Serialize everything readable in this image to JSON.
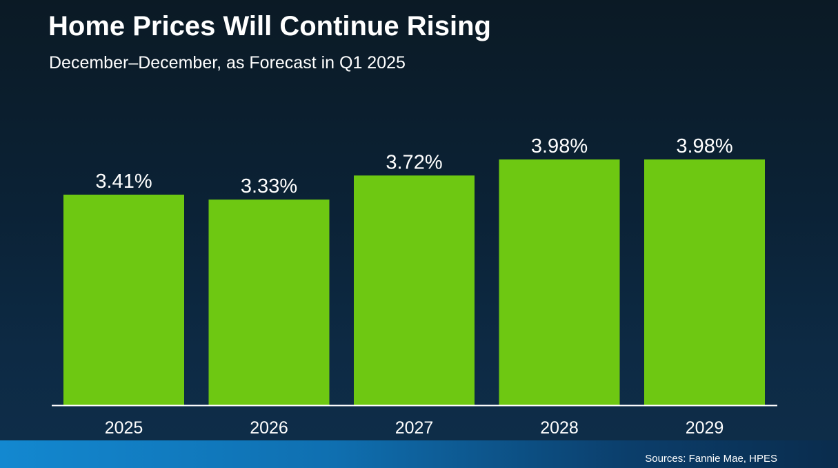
{
  "page": {
    "title": "Home Prices Will Continue Rising",
    "subtitle": "December–December, as Forecast in Q1 2025",
    "source": "Sources: Fannie Mae, HPES"
  },
  "colors": {
    "bar": "#6ec812",
    "axis": "#ffffff",
    "label": "#ffffff"
  },
  "chart_data": {
    "type": "bar",
    "categories": [
      "2025",
      "2026",
      "2027",
      "2028",
      "2029"
    ],
    "values": [
      3.41,
      3.33,
      3.72,
      3.98,
      3.98
    ],
    "value_labels": [
      "3.41%",
      "3.33%",
      "3.72%",
      "3.98%",
      "3.98%"
    ],
    "title": "Home Prices Will Continue Rising",
    "subtitle": "December–December, as Forecast in Q1 2025",
    "xlabel": "",
    "ylabel": "",
    "ylim": [
      0,
      4
    ],
    "grid": false,
    "legend": "none"
  }
}
